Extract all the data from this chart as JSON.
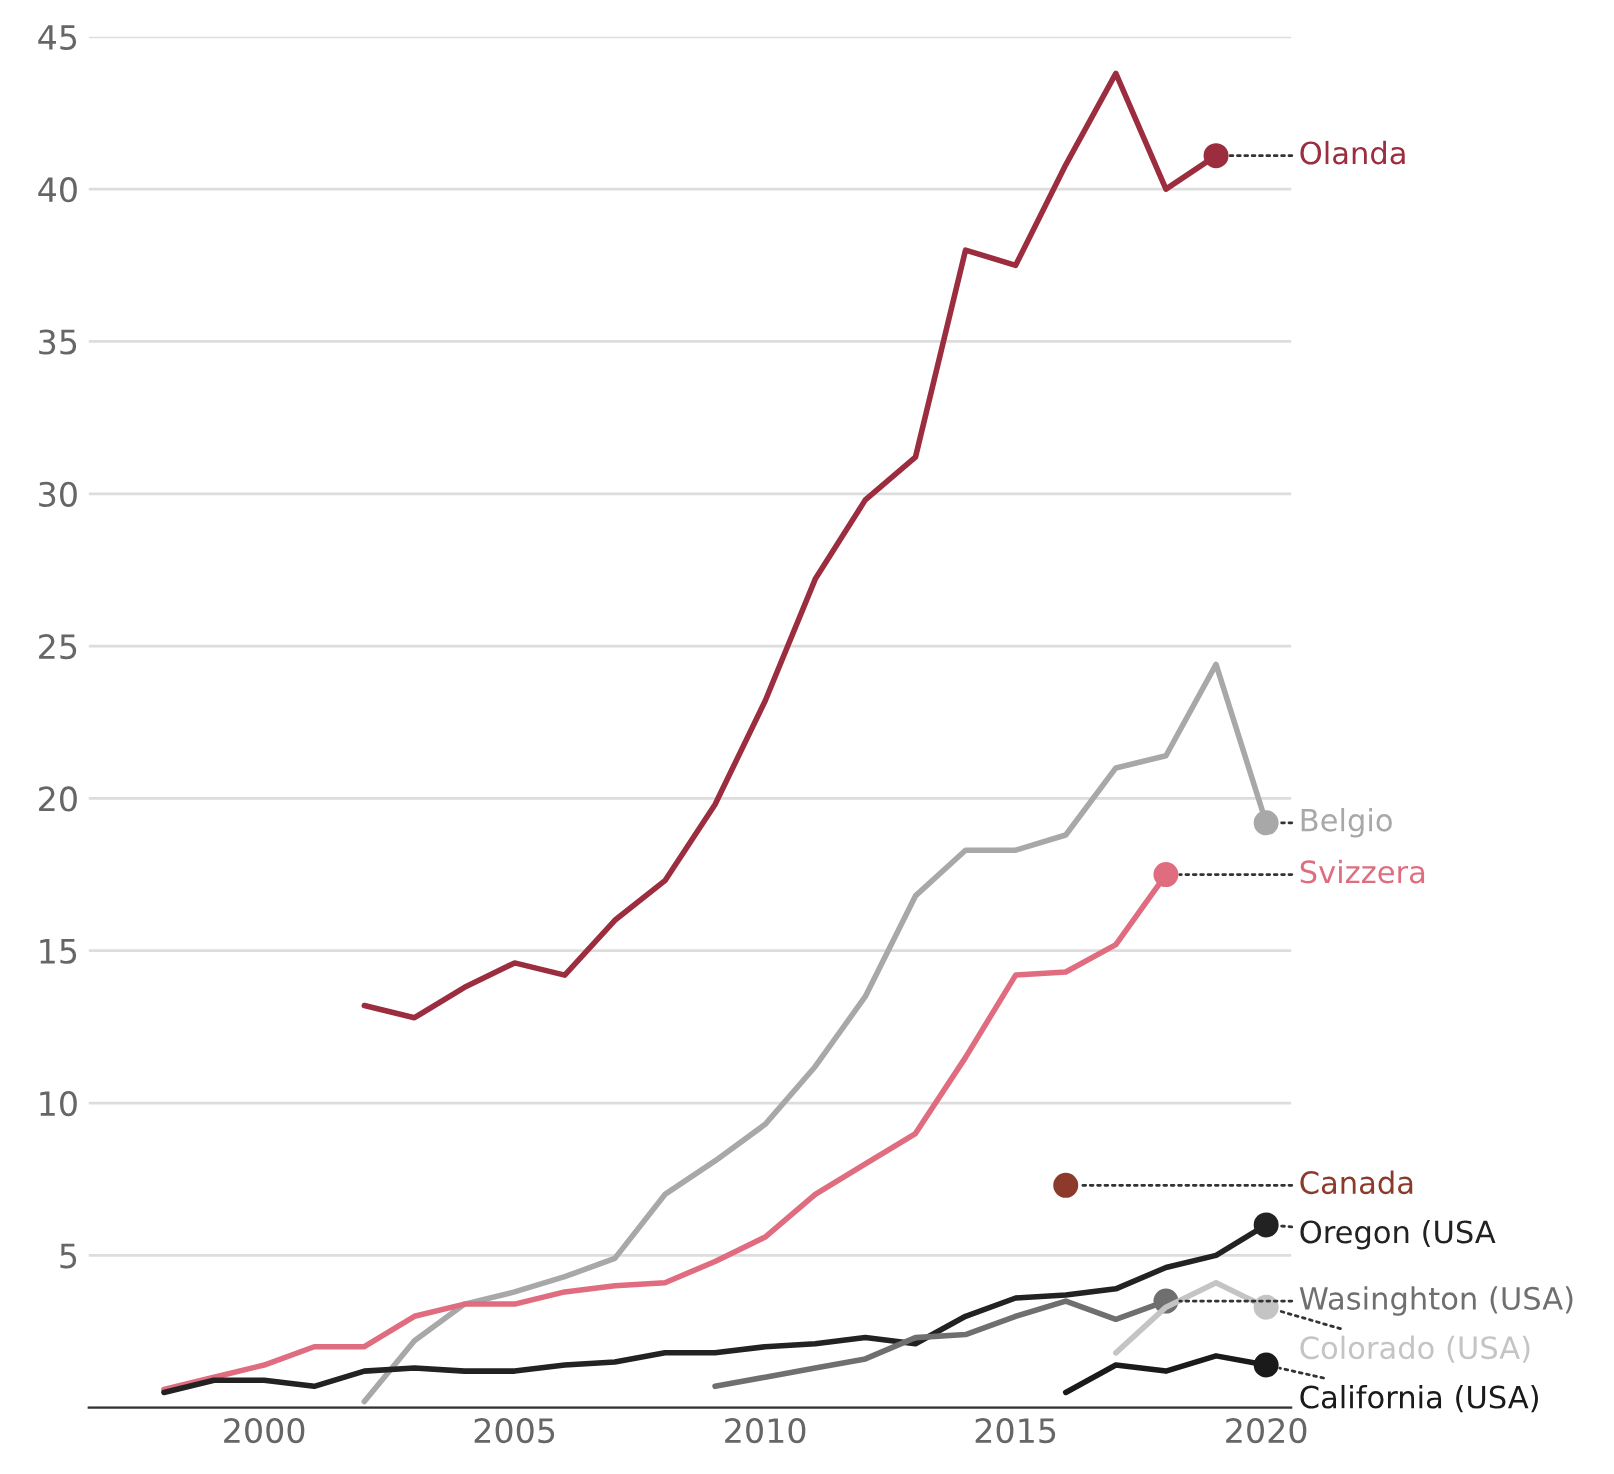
{
  "chart_data": {
    "type": "line",
    "xlim": [
      1996.5,
      2020.5
    ],
    "xticks": [
      2000,
      2005,
      2010,
      2015,
      2020
    ],
    "ylim": [
      0,
      45
    ],
    "yticks": [
      {
        "value": 0,
        "label": null
      },
      5,
      10,
      15,
      20,
      25,
      30,
      35,
      40,
      45
    ],
    "grid": "y",
    "legend": false,
    "line_style": "solid",
    "series": [
      {
        "name": "Olanda",
        "color": "#9b2d3f",
        "x": [
          2002,
          2003,
          2004,
          2005,
          2006,
          2007,
          2008,
          2009,
          2010,
          2011,
          2012,
          2013,
          2014,
          2015,
          2016,
          2017,
          2018,
          2019
        ],
        "values": [
          13.2,
          12.8,
          13.8,
          14.6,
          14.2,
          16.0,
          17.3,
          19.8,
          23.2,
          27.2,
          29.8,
          31.2,
          38.0,
          37.5,
          40.8,
          43.8,
          40.0,
          41.1
        ]
      },
      {
        "name": "Belgio",
        "color": "#a8a8a8",
        "x": [
          2002,
          2003,
          2004,
          2005,
          2006,
          2007,
          2008,
          2009,
          2010,
          2011,
          2012,
          2013,
          2014,
          2015,
          2016,
          2017,
          2018,
          2019,
          2020
        ],
        "values": [
          0.2,
          2.2,
          3.4,
          3.8,
          4.3,
          4.9,
          7.0,
          8.1,
          9.3,
          11.2,
          13.5,
          16.8,
          18.3,
          18.3,
          18.8,
          21.0,
          21.4,
          24.4,
          19.2
        ]
      },
      {
        "name": "Svizzera",
        "color": "#e06c7f",
        "x": [
          1998,
          1999,
          2000,
          2001,
          2002,
          2003,
          2004,
          2005,
          2006,
          2007,
          2008,
          2009,
          2010,
          2011,
          2012,
          2013,
          2014,
          2015,
          2016,
          2017,
          2018
        ],
        "values": [
          0.6,
          1.0,
          1.4,
          2.0,
          2.0,
          3.0,
          3.4,
          3.4,
          3.8,
          4.0,
          4.1,
          4.8,
          5.6,
          7.0,
          8.0,
          9.0,
          11.5,
          14.2,
          14.3,
          15.2,
          17.5
        ]
      },
      {
        "name": "Canada",
        "color": "#8b3a2b",
        "marker": "circle",
        "x": [
          2016
        ],
        "values": [
          7.3
        ]
      },
      {
        "name": "Oregon (USA",
        "color": "#222222",
        "x": [
          1998,
          1999,
          2000,
          2001,
          2002,
          2003,
          2004,
          2005,
          2006,
          2007,
          2008,
          2009,
          2010,
          2011,
          2012,
          2013,
          2014,
          2015,
          2016,
          2017,
          2018,
          2019,
          2020
        ],
        "values": [
          0.5,
          0.9,
          0.9,
          0.7,
          1.2,
          1.3,
          1.2,
          1.2,
          1.4,
          1.5,
          1.8,
          1.8,
          2.0,
          2.1,
          2.3,
          2.1,
          3.0,
          3.6,
          3.7,
          3.9,
          4.6,
          5.0,
          6.0
        ]
      },
      {
        "name": "Wasinghton (USA)",
        "color": "#6f6f6f",
        "x": [
          2009,
          2010,
          2011,
          2012,
          2013,
          2014,
          2015,
          2016,
          2017,
          2018
        ],
        "values": [
          0.7,
          1.0,
          1.3,
          1.6,
          2.3,
          2.4,
          3.0,
          3.5,
          2.9,
          3.5
        ]
      },
      {
        "name": "Colorado (USA)",
        "color": "#c4c4c4",
        "x": [
          2017,
          2018,
          2019,
          2020
        ],
        "values": [
          1.8,
          3.3,
          4.1,
          3.3
        ]
      },
      {
        "name": "California (USA)",
        "color": "#1a1a1a",
        "x": [
          2016,
          2017,
          2018,
          2019,
          2020
        ],
        "values": [
          0.5,
          1.4,
          1.2,
          1.7,
          1.4
        ]
      }
    ]
  }
}
